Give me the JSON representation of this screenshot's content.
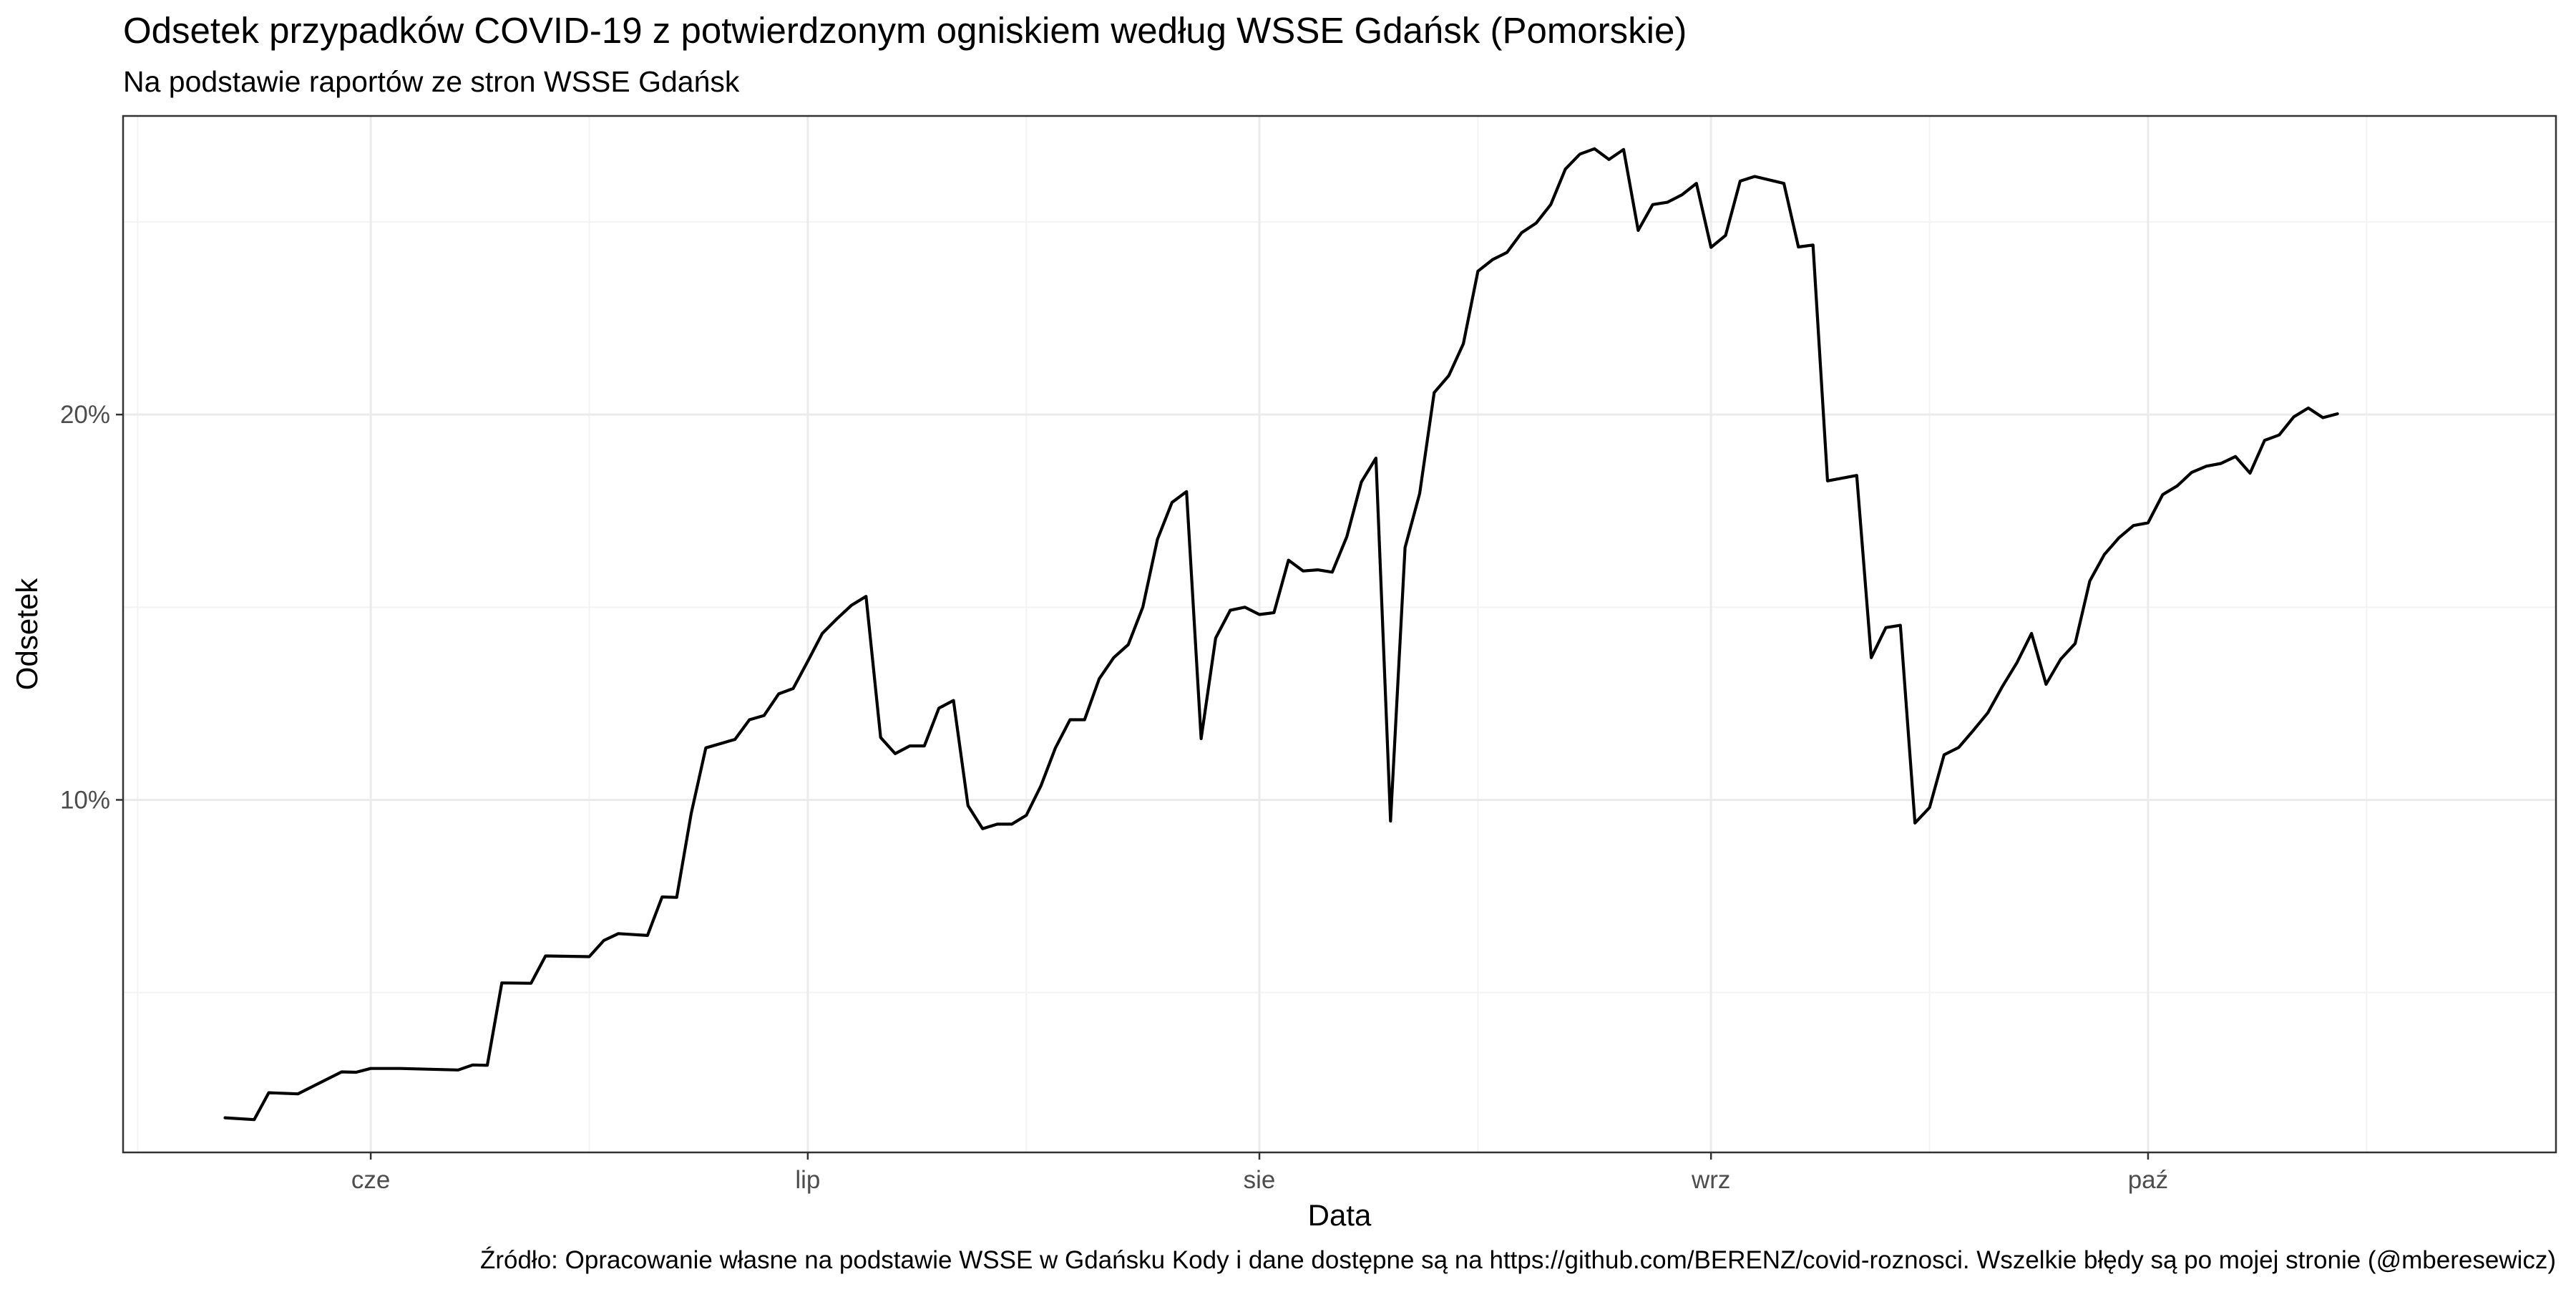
{
  "chart_data": {
    "type": "line",
    "title": "Odsetek przypadków COVID-19 z potwierdzonym ogniskiem według WSSE Gdańsk (Pomorskie)",
    "subtitle": "Na podstawie raportów ze stron WSSE Gdańsk",
    "xlabel": "Data",
    "ylabel": "Odsetek",
    "caption": "Źródło: Opracowanie własne na podstawie WSSE w Gdańsku Kody i dane dostępne są na https://github.com/BERENZ/covid-roznosci. Wszelkie błędy są po mojej stronie (@mberesewicz)",
    "x_ticks": [
      {
        "label": "cze",
        "date": "2020-06-01"
      },
      {
        "label": "lip",
        "date": "2020-07-01"
      },
      {
        "label": "sie",
        "date": "2020-08-01"
      },
      {
        "label": "wrz",
        "date": "2020-09-01"
      },
      {
        "label": "paź",
        "date": "2020-10-01"
      }
    ],
    "x_minor_ticks": [
      "2020-05-16",
      "2020-06-16",
      "2020-07-16",
      "2020-08-16",
      "2020-09-16",
      "2020-10-16"
    ],
    "xlim": [
      "2020-05-15",
      "2020-10-29"
    ],
    "y_ticks": [
      {
        "label": "10%",
        "value": 0.1
      },
      {
        "label": "20%",
        "value": 0.2
      }
    ],
    "y_minor_ticks": [
      0.05,
      0.15,
      0.25
    ],
    "ylim": [
      0.0085,
      0.2775
    ],
    "grid": true,
    "series": [
      {
        "points": [
          [
            "2020-05-22",
            0.0175
          ],
          [
            "2020-05-24",
            0.017
          ],
          [
            "2020-05-25",
            0.024
          ],
          [
            "2020-05-27",
            0.0237
          ],
          [
            "2020-05-29",
            0.0275
          ],
          [
            "2020-05-30",
            0.0294
          ],
          [
            "2020-05-31",
            0.0293
          ],
          [
            "2020-06-01",
            0.0303
          ],
          [
            "2020-06-03",
            0.0303
          ],
          [
            "2020-06-06",
            0.03
          ],
          [
            "2020-06-07",
            0.0299
          ],
          [
            "2020-06-08",
            0.0312
          ],
          [
            "2020-06-09",
            0.0311
          ],
          [
            "2020-06-10",
            0.0525
          ],
          [
            "2020-06-12",
            0.0524
          ],
          [
            "2020-06-13",
            0.0595
          ],
          [
            "2020-06-16",
            0.0593
          ],
          [
            "2020-06-17",
            0.0635
          ],
          [
            "2020-06-18",
            0.0653
          ],
          [
            "2020-06-20",
            0.0648
          ],
          [
            "2020-06-21",
            0.0748
          ],
          [
            "2020-06-22",
            0.0747
          ],
          [
            "2020-06-23",
            0.0965
          ],
          [
            "2020-06-24",
            0.1135
          ],
          [
            "2020-06-26",
            0.1157
          ],
          [
            "2020-06-27",
            0.1208
          ],
          [
            "2020-06-28",
            0.1219
          ],
          [
            "2020-06-29",
            0.1275
          ],
          [
            "2020-06-30",
            0.1289
          ],
          [
            "2020-07-01",
            0.136
          ],
          [
            "2020-07-02",
            0.1432
          ],
          [
            "2020-07-03",
            0.147
          ],
          [
            "2020-07-04",
            0.1505
          ],
          [
            "2020-07-05",
            0.1528
          ],
          [
            "2020-07-06",
            0.1162
          ],
          [
            "2020-07-07",
            0.112
          ],
          [
            "2020-07-08",
            0.114
          ],
          [
            "2020-07-09",
            0.114
          ],
          [
            "2020-07-10",
            0.1238
          ],
          [
            "2020-07-11",
            0.1258
          ],
          [
            "2020-07-12",
            0.0985
          ],
          [
            "2020-07-13",
            0.0925
          ],
          [
            "2020-07-14",
            0.0937
          ],
          [
            "2020-07-15",
            0.0937
          ],
          [
            "2020-07-16",
            0.096
          ],
          [
            "2020-07-17",
            0.1036
          ],
          [
            "2020-07-18",
            0.1135
          ],
          [
            "2020-07-19",
            0.1208
          ],
          [
            "2020-07-20",
            0.1208
          ],
          [
            "2020-07-21",
            0.1314
          ],
          [
            "2020-07-22",
            0.1369
          ],
          [
            "2020-07-23",
            0.1403
          ],
          [
            "2020-07-24",
            0.15
          ],
          [
            "2020-07-25",
            0.1676
          ],
          [
            "2020-07-26",
            0.1772
          ],
          [
            "2020-07-27",
            0.18
          ],
          [
            "2020-07-28",
            0.1159
          ],
          [
            "2020-07-29",
            0.142
          ],
          [
            "2020-07-30",
            0.1492
          ],
          [
            "2020-07-31",
            0.15
          ],
          [
            "2020-08-01",
            0.1481
          ],
          [
            "2020-08-02",
            0.1486
          ],
          [
            "2020-08-03",
            0.1622
          ],
          [
            "2020-08-04",
            0.1594
          ],
          [
            "2020-08-05",
            0.1597
          ],
          [
            "2020-08-06",
            0.1591
          ],
          [
            "2020-08-07",
            0.1683
          ],
          [
            "2020-08-08",
            0.1825
          ],
          [
            "2020-08-09",
            0.1887
          ],
          [
            "2020-08-10",
            0.0945
          ],
          [
            "2020-08-11",
            0.1655
          ],
          [
            "2020-08-12",
            0.1795
          ],
          [
            "2020-08-13",
            0.2057
          ],
          [
            "2020-08-14",
            0.2101
          ],
          [
            "2020-08-15",
            0.2184
          ],
          [
            "2020-08-16",
            0.2372
          ],
          [
            "2020-08-17",
            0.2402
          ],
          [
            "2020-08-18",
            0.2421
          ],
          [
            "2020-08-19",
            0.2472
          ],
          [
            "2020-08-20",
            0.2497
          ],
          [
            "2020-08-21",
            0.2545
          ],
          [
            "2020-08-22",
            0.2637
          ],
          [
            "2020-08-23",
            0.2676
          ],
          [
            "2020-08-24",
            0.269
          ],
          [
            "2020-08-25",
            0.2662
          ],
          [
            "2020-08-26",
            0.2688
          ],
          [
            "2020-08-27",
            0.2478
          ],
          [
            "2020-08-28",
            0.2545
          ],
          [
            "2020-08-29",
            0.2551
          ],
          [
            "2020-08-30",
            0.257
          ],
          [
            "2020-08-31",
            0.26
          ],
          [
            "2020-09-01",
            0.2434
          ],
          [
            "2020-09-02",
            0.2465
          ],
          [
            "2020-09-03",
            0.2606
          ],
          [
            "2020-09-04",
            0.2618
          ],
          [
            "2020-09-06",
            0.26
          ],
          [
            "2020-09-07",
            0.2435
          ],
          [
            "2020-09-08",
            0.244
          ],
          [
            "2020-09-09",
            0.1828
          ],
          [
            "2020-09-11",
            0.1842
          ],
          [
            "2020-09-12",
            0.1369
          ],
          [
            "2020-09-13",
            0.1447
          ],
          [
            "2020-09-14",
            0.1453
          ],
          [
            "2020-09-15",
            0.094
          ],
          [
            "2020-09-16",
            0.098
          ],
          [
            "2020-09-17",
            0.1117
          ],
          [
            "2020-09-18",
            0.1136
          ],
          [
            "2020-09-19",
            0.118
          ],
          [
            "2020-09-20",
            0.1226
          ],
          [
            "2020-09-21",
            0.1294
          ],
          [
            "2020-09-22",
            0.1356
          ],
          [
            "2020-09-23",
            0.1432
          ],
          [
            "2020-09-24",
            0.13
          ],
          [
            "2020-09-25",
            0.1365
          ],
          [
            "2020-09-26",
            0.1406
          ],
          [
            "2020-09-27",
            0.1568
          ],
          [
            "2020-09-28",
            0.1637
          ],
          [
            "2020-09-29",
            0.168
          ],
          [
            "2020-09-30",
            0.1712
          ],
          [
            "2020-10-01",
            0.1719
          ],
          [
            "2020-10-02",
            0.1792
          ],
          [
            "2020-10-03",
            0.1815
          ],
          [
            "2020-10-04",
            0.185
          ],
          [
            "2020-10-05",
            0.1866
          ],
          [
            "2020-10-06",
            0.1873
          ],
          [
            "2020-10-07",
            0.1891
          ],
          [
            "2020-10-08",
            0.1848
          ],
          [
            "2020-10-09",
            0.1933
          ],
          [
            "2020-10-10",
            0.1947
          ],
          [
            "2020-10-11",
            0.1994
          ],
          [
            "2020-10-12",
            0.2017
          ],
          [
            "2020-10-13",
            0.1992
          ],
          [
            "2020-10-14",
            0.2002
          ]
        ]
      }
    ]
  }
}
